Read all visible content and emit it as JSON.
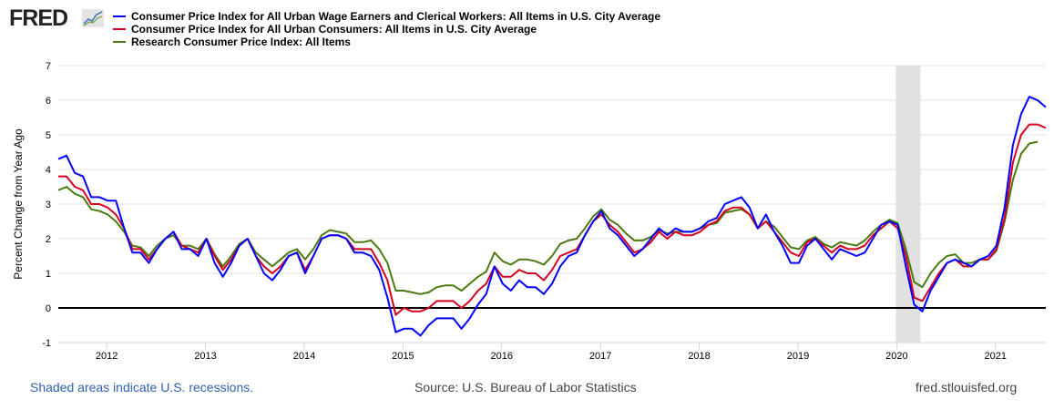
{
  "logo_text": "FRED",
  "footer": {
    "recession_note": "Shaded areas indicate U.S. recessions.",
    "source": "Source: U.S. Bureau of Labor Statistics",
    "site": "fred.stlouisfed.org"
  },
  "chart_data": {
    "type": "line",
    "title": "",
    "xlabel": "",
    "ylabel": "Percent Change from Year Ago",
    "ylim": [
      -1,
      7
    ],
    "yticks": [
      "-1",
      "0",
      "1",
      "2",
      "3",
      "4",
      "5",
      "6",
      "7"
    ],
    "x_start": "2011-08",
    "x_end": "2021-08",
    "frequency": "monthly",
    "xticks": [
      "2012",
      "2013",
      "2014",
      "2015",
      "2016",
      "2017",
      "2018",
      "2019",
      "2020",
      "2021"
    ],
    "grid": true,
    "legend_position": "top-left",
    "recessions": [
      {
        "start": "2020-02",
        "end": "2020-04"
      }
    ],
    "series": [
      {
        "name": "Consumer Price Index for All Urban Wage Earners and Clerical Workers: All Items in U.S. City Average",
        "color": "#0000ff",
        "values": [
          4.3,
          4.4,
          3.9,
          3.8,
          3.2,
          3.2,
          3.1,
          3.1,
          2.3,
          1.6,
          1.6,
          1.3,
          1.7,
          2.0,
          2.2,
          1.7,
          1.7,
          1.5,
          2.0,
          1.3,
          0.9,
          1.3,
          1.8,
          2.0,
          1.5,
          1.0,
          0.8,
          1.1,
          1.5,
          1.6,
          1.0,
          1.5,
          2.0,
          2.1,
          2.1,
          2.0,
          1.6,
          1.6,
          1.5,
          1.1,
          0.3,
          -0.7,
          -0.6,
          -0.6,
          -0.8,
          -0.5,
          -0.3,
          -0.3,
          -0.3,
          -0.6,
          -0.3,
          0.1,
          0.4,
          1.2,
          0.7,
          0.5,
          0.8,
          0.6,
          0.6,
          0.4,
          0.7,
          1.2,
          1.5,
          1.6,
          2.1,
          2.5,
          2.8,
          2.3,
          2.1,
          1.8,
          1.5,
          1.7,
          2.0,
          2.3,
          2.1,
          2.3,
          2.2,
          2.2,
          2.3,
          2.5,
          2.6,
          3.0,
          3.1,
          3.2,
          2.9,
          2.3,
          2.7,
          2.2,
          1.8,
          1.3,
          1.3,
          1.8,
          2.0,
          1.7,
          1.4,
          1.7,
          1.6,
          1.5,
          1.6,
          2.0,
          2.4,
          2.5,
          2.4,
          1.2,
          0.1,
          -0.1,
          0.5,
          0.9,
          1.3,
          1.4,
          1.3,
          1.2,
          1.4,
          1.5,
          1.8,
          2.9,
          4.7,
          5.6,
          6.1,
          6.0,
          5.8
        ]
      },
      {
        "name": "Consumer Price Index for All Urban Consumers: All Items in U.S. City Average",
        "color": "#d7001e",
        "values": [
          3.8,
          3.8,
          3.5,
          3.4,
          3.0,
          3.0,
          2.9,
          2.7,
          2.3,
          1.7,
          1.7,
          1.4,
          1.7,
          2.0,
          2.2,
          1.8,
          1.7,
          1.6,
          2.0,
          1.5,
          1.1,
          1.4,
          1.8,
          2.0,
          1.5,
          1.2,
          1.0,
          1.2,
          1.5,
          1.6,
          1.1,
          1.5,
          2.0,
          2.1,
          2.1,
          2.0,
          1.7,
          1.7,
          1.7,
          1.3,
          0.8,
          -0.2,
          0.0,
          -0.1,
          -0.1,
          0.0,
          0.2,
          0.2,
          0.2,
          0.0,
          0.2,
          0.5,
          0.7,
          1.2,
          0.9,
          0.9,
          1.1,
          1.0,
          1.0,
          0.8,
          1.1,
          1.5,
          1.6,
          1.7,
          2.1,
          2.5,
          2.7,
          2.4,
          2.2,
          1.9,
          1.6,
          1.7,
          1.9,
          2.2,
          2.0,
          2.2,
          2.1,
          2.1,
          2.2,
          2.4,
          2.5,
          2.8,
          2.9,
          2.9,
          2.7,
          2.3,
          2.5,
          2.2,
          1.9,
          1.6,
          1.5,
          1.9,
          2.0,
          1.8,
          1.6,
          1.8,
          1.7,
          1.7,
          1.8,
          2.1,
          2.3,
          2.5,
          2.3,
          1.5,
          0.3,
          0.2,
          0.6,
          1.0,
          1.3,
          1.4,
          1.2,
          1.2,
          1.4,
          1.4,
          1.7,
          2.6,
          4.2,
          5.0,
          5.3,
          5.3,
          5.2
        ]
      },
      {
        "name": "Research Consumer Price Index: All Items",
        "color": "#4b7a12",
        "values": [
          3.4,
          3.5,
          3.3,
          3.2,
          2.85,
          2.8,
          2.7,
          2.5,
          2.2,
          1.8,
          1.75,
          1.5,
          1.8,
          2.0,
          2.1,
          1.8,
          1.8,
          1.7,
          2.0,
          1.55,
          1.2,
          1.5,
          1.85,
          2.0,
          1.6,
          1.4,
          1.2,
          1.4,
          1.6,
          1.7,
          1.4,
          1.7,
          2.1,
          2.25,
          2.2,
          2.15,
          1.9,
          1.9,
          1.95,
          1.7,
          1.3,
          0.5,
          0.5,
          0.45,
          0.4,
          0.45,
          0.6,
          0.65,
          0.65,
          0.5,
          0.7,
          0.9,
          1.05,
          1.6,
          1.35,
          1.25,
          1.4,
          1.4,
          1.35,
          1.25,
          1.5,
          1.85,
          1.95,
          2.0,
          2.3,
          2.65,
          2.85,
          2.55,
          2.4,
          2.15,
          1.95,
          1.95,
          2.05,
          2.25,
          2.15,
          2.2,
          2.2,
          2.2,
          2.3,
          2.4,
          2.45,
          2.75,
          2.8,
          2.85,
          2.7,
          2.3,
          2.5,
          2.35,
          2.05,
          1.75,
          1.7,
          1.95,
          2.05,
          1.85,
          1.75,
          1.9,
          1.85,
          1.8,
          1.95,
          2.2,
          2.4,
          2.55,
          2.45,
          1.7,
          0.75,
          0.6,
          1.0,
          1.3,
          1.5,
          1.55,
          1.3,
          1.3,
          1.4,
          1.4,
          1.65,
          2.5,
          3.7,
          4.45,
          4.75,
          4.8
        ]
      }
    ]
  }
}
